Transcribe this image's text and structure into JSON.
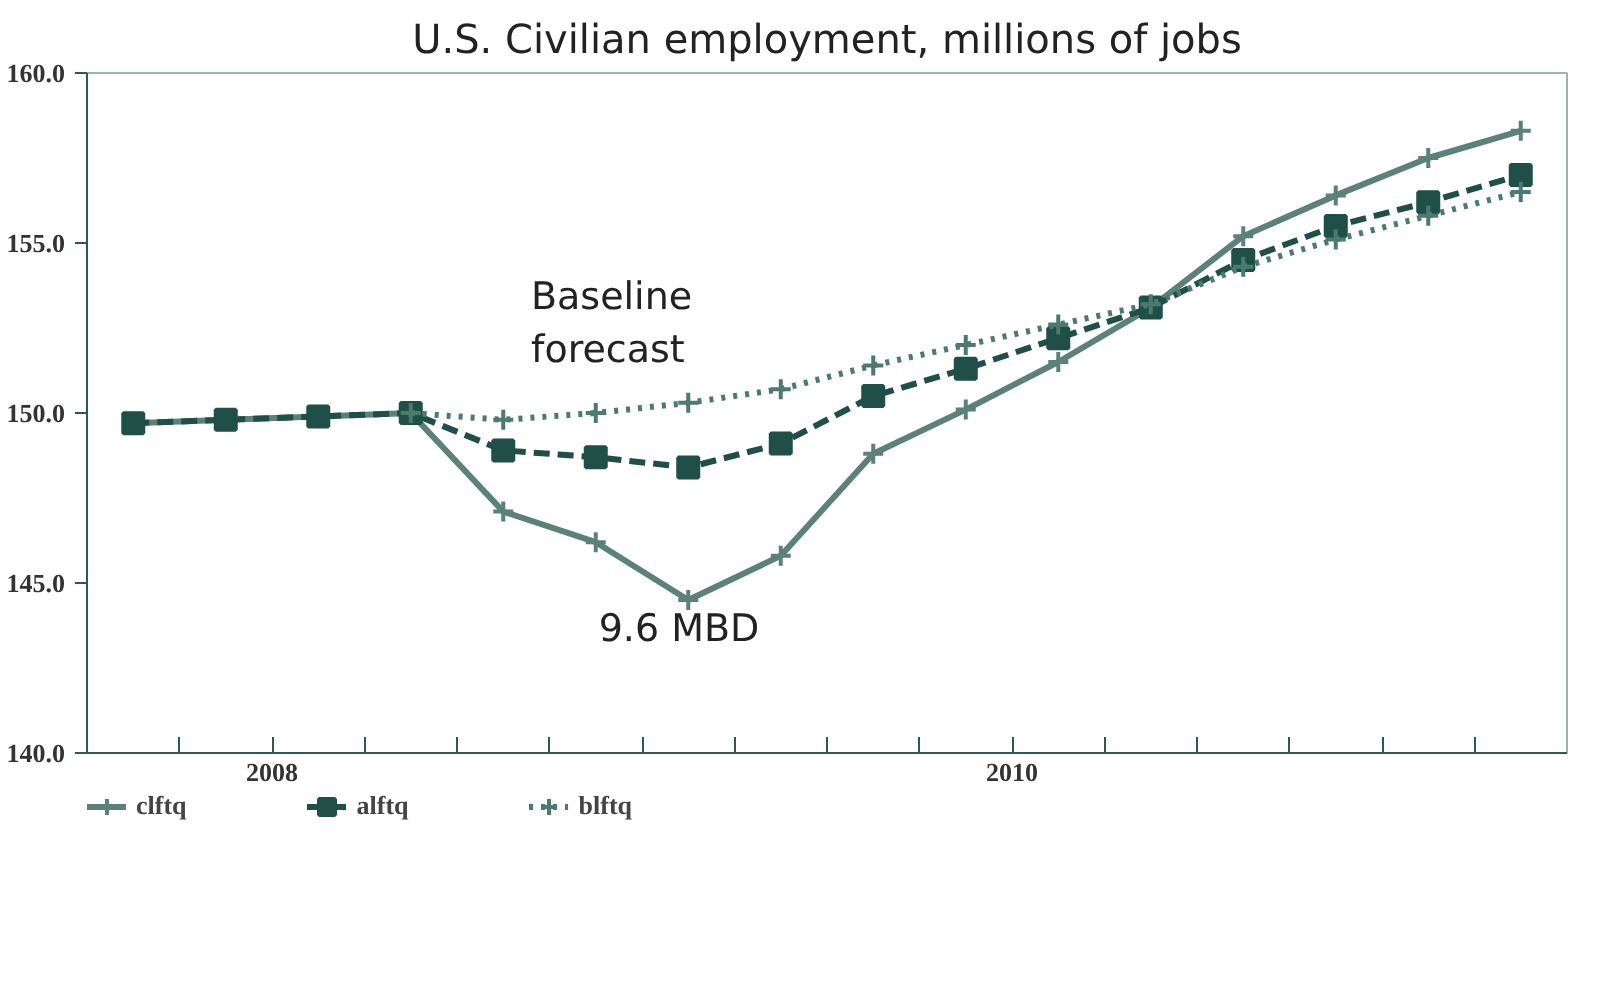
{
  "chart_data": {
    "type": "line",
    "title": "U.S. Civilian employment, millions of jobs",
    "x": [
      2008.125,
      2008.375,
      2008.625,
      2008.875,
      2009.125,
      2009.375,
      2009.625,
      2009.875,
      2010.125,
      2010.375,
      2010.625,
      2010.875,
      2011.125,
      2011.375,
      2011.625,
      2011.875
    ],
    "series": [
      {
        "name": "clftq",
        "color": "#5b8178",
        "marker": "cross",
        "line_style": "solid",
        "values": [
          149.7,
          149.8,
          149.9,
          150.0,
          147.1,
          146.2,
          144.5,
          145.8,
          148.8,
          150.1,
          151.5,
          153.1,
          155.2,
          156.4,
          157.5,
          158.3
        ]
      },
      {
        "name": "alftq",
        "color": "#1f4f46",
        "marker": "square",
        "line_style": "dashed",
        "values": [
          149.7,
          149.8,
          149.9,
          150.0,
          148.9,
          148.7,
          148.4,
          149.1,
          150.5,
          151.3,
          152.2,
          153.1,
          154.5,
          155.5,
          156.2,
          157.0
        ]
      },
      {
        "name": "blftq",
        "color": "#4d7a70",
        "marker": "cross",
        "line_style": "dotted",
        "values": [
          null,
          null,
          null,
          150.0,
          149.8,
          150.0,
          150.3,
          150.7,
          151.4,
          152.0,
          152.6,
          153.2,
          154.3,
          155.1,
          155.8,
          156.5
        ]
      }
    ],
    "xlim": [
      2008,
      2012
    ],
    "xticks": [
      {
        "value": 2008.25,
        "label": null
      },
      {
        "value": 2008.5,
        "label": "2008"
      },
      {
        "value": 2008.75,
        "label": null
      },
      {
        "value": 2009,
        "label": null
      },
      {
        "value": 2009.25,
        "label": null
      },
      {
        "value": 2009.5,
        "label": null
      },
      {
        "value": 2009.75,
        "label": null
      },
      {
        "value": 2010,
        "label": null
      },
      {
        "value": 2010.25,
        "label": null
      },
      {
        "value": 2010.5,
        "label": "2010"
      },
      {
        "value": 2010.75,
        "label": null
      },
      {
        "value": 2011,
        "label": null
      },
      {
        "value": 2011.25,
        "label": null
      },
      {
        "value": 2011.5,
        "label": null
      },
      {
        "value": 2011.75,
        "label": null
      }
    ],
    "ylim": [
      140,
      160
    ],
    "yticks": [
      {
        "value": 140,
        "label": "140.0"
      },
      {
        "value": 145,
        "label": "145.0"
      },
      {
        "value": 150,
        "label": "150.0"
      },
      {
        "value": 155,
        "label": "155.0"
      },
      {
        "value": 160,
        "label": "160.0"
      }
    ],
    "annotations": [
      "Baseline\nforecast",
      "9.6 MBD"
    ],
    "grid": false,
    "legend": "bottom"
  }
}
